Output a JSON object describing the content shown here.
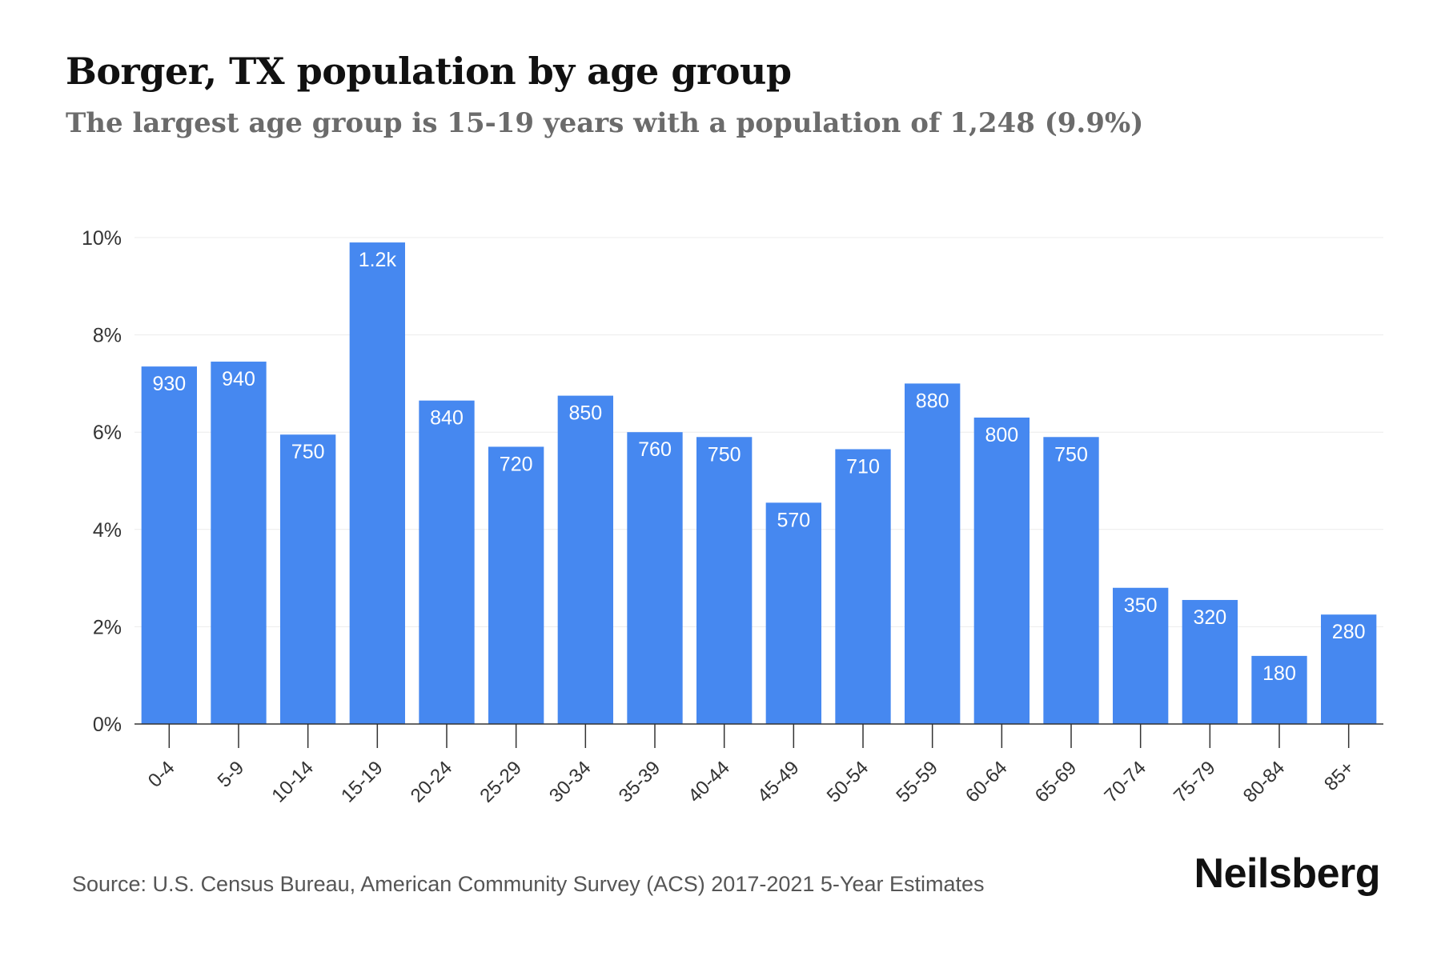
{
  "header": {
    "title": "Borger, TX population by age group",
    "subtitle": "The largest age group is 15-19 years with a population of 1,248 (9.9%)"
  },
  "footer": {
    "source": "Source: U.S. Census Bureau, American Community Survey (ACS) 2017-2021 5-Year Estimates",
    "brand": "Neilsberg"
  },
  "colors": {
    "bar": "#4688f0",
    "grid": "#ececec",
    "axis": "#333333",
    "tick_label": "#333333",
    "data_label": "#ffffff"
  },
  "chart_data": {
    "type": "bar",
    "title": "Borger, TX population by age group",
    "subtitle": "The largest age group is 15-19 years with a population of 1,248 (9.9%)",
    "categories": [
      "0-4",
      "5-9",
      "10-14",
      "15-19",
      "20-24",
      "25-29",
      "30-34",
      "35-39",
      "40-44",
      "45-49",
      "50-54",
      "55-59",
      "60-64",
      "65-69",
      "70-74",
      "75-79",
      "80-84",
      "85+"
    ],
    "values": [
      7.35,
      7.45,
      5.95,
      9.9,
      6.65,
      5.7,
      6.75,
      6.0,
      5.9,
      4.55,
      5.65,
      7.0,
      6.3,
      5.9,
      2.8,
      2.55,
      1.4,
      2.25
    ],
    "data_labels": [
      "930",
      "940",
      "750",
      "1.2k",
      "840",
      "720",
      "850",
      "760",
      "750",
      "570",
      "710",
      "880",
      "800",
      "750",
      "350",
      "320",
      "180",
      "280"
    ],
    "ylim": [
      0,
      10
    ],
    "yticks": [
      0,
      2,
      4,
      6,
      8,
      10
    ],
    "ytick_labels": [
      "0%",
      "2%",
      "4%",
      "6%",
      "8%",
      "10%"
    ],
    "xlabel": "",
    "ylabel": "",
    "grid": true,
    "legend": "none"
  }
}
